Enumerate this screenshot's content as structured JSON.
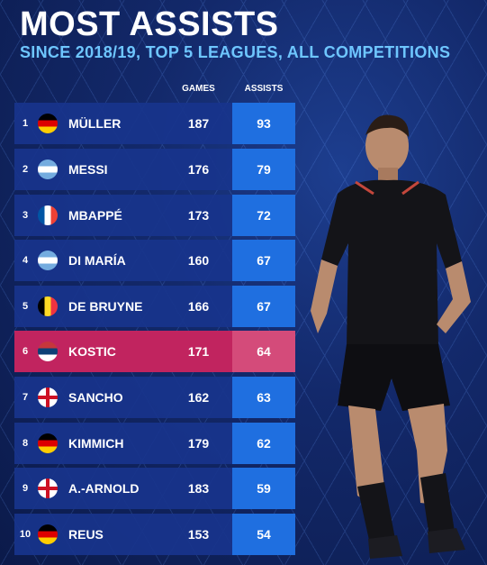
{
  "title": "MOST ASSISTS",
  "subtitle": "SINCE 2018/19, TOP 5 LEAGUES, ALL COMPETITIONS",
  "columns": {
    "games": "GAMES",
    "assists": "ASSISTS"
  },
  "rows": [
    {
      "rank": "1",
      "name": "MÜLLER",
      "games": "187",
      "assists": "93",
      "flag": "germany-flag-icon"
    },
    {
      "rank": "2",
      "name": "MESSI",
      "games": "176",
      "assists": "79",
      "flag": "argentina-flag-icon"
    },
    {
      "rank": "3",
      "name": "MBAPPÉ",
      "games": "173",
      "assists": "72",
      "flag": "france-flag-icon"
    },
    {
      "rank": "4",
      "name": "DI MARÍA",
      "games": "160",
      "assists": "67",
      "flag": "argentina-flag-icon"
    },
    {
      "rank": "5",
      "name": "DE BRUYNE",
      "games": "166",
      "assists": "67",
      "flag": "belgium-flag-icon"
    },
    {
      "rank": "6",
      "name": "KOSTIC",
      "games": "171",
      "assists": "64",
      "flag": "serbia-flag-icon"
    },
    {
      "rank": "7",
      "name": "SANCHO",
      "games": "162",
      "assists": "63",
      "flag": "england-flag-icon"
    },
    {
      "rank": "8",
      "name": "KIMMICH",
      "games": "179",
      "assists": "62",
      "flag": "germany-flag-icon"
    },
    {
      "rank": "9",
      "name": "A.-ARNOLD",
      "games": "183",
      "assists": "59",
      "flag": "england-flag-icon"
    },
    {
      "rank": "10",
      "name": "REUS",
      "games": "153",
      "assists": "54",
      "flag": "germany-flag-icon"
    }
  ],
  "colors": {
    "row_bg": "#18348c",
    "assists_bg": "#1f6fe0",
    "highlight_bg": "#c1245f",
    "subtitle": "#6ec6ff"
  }
}
